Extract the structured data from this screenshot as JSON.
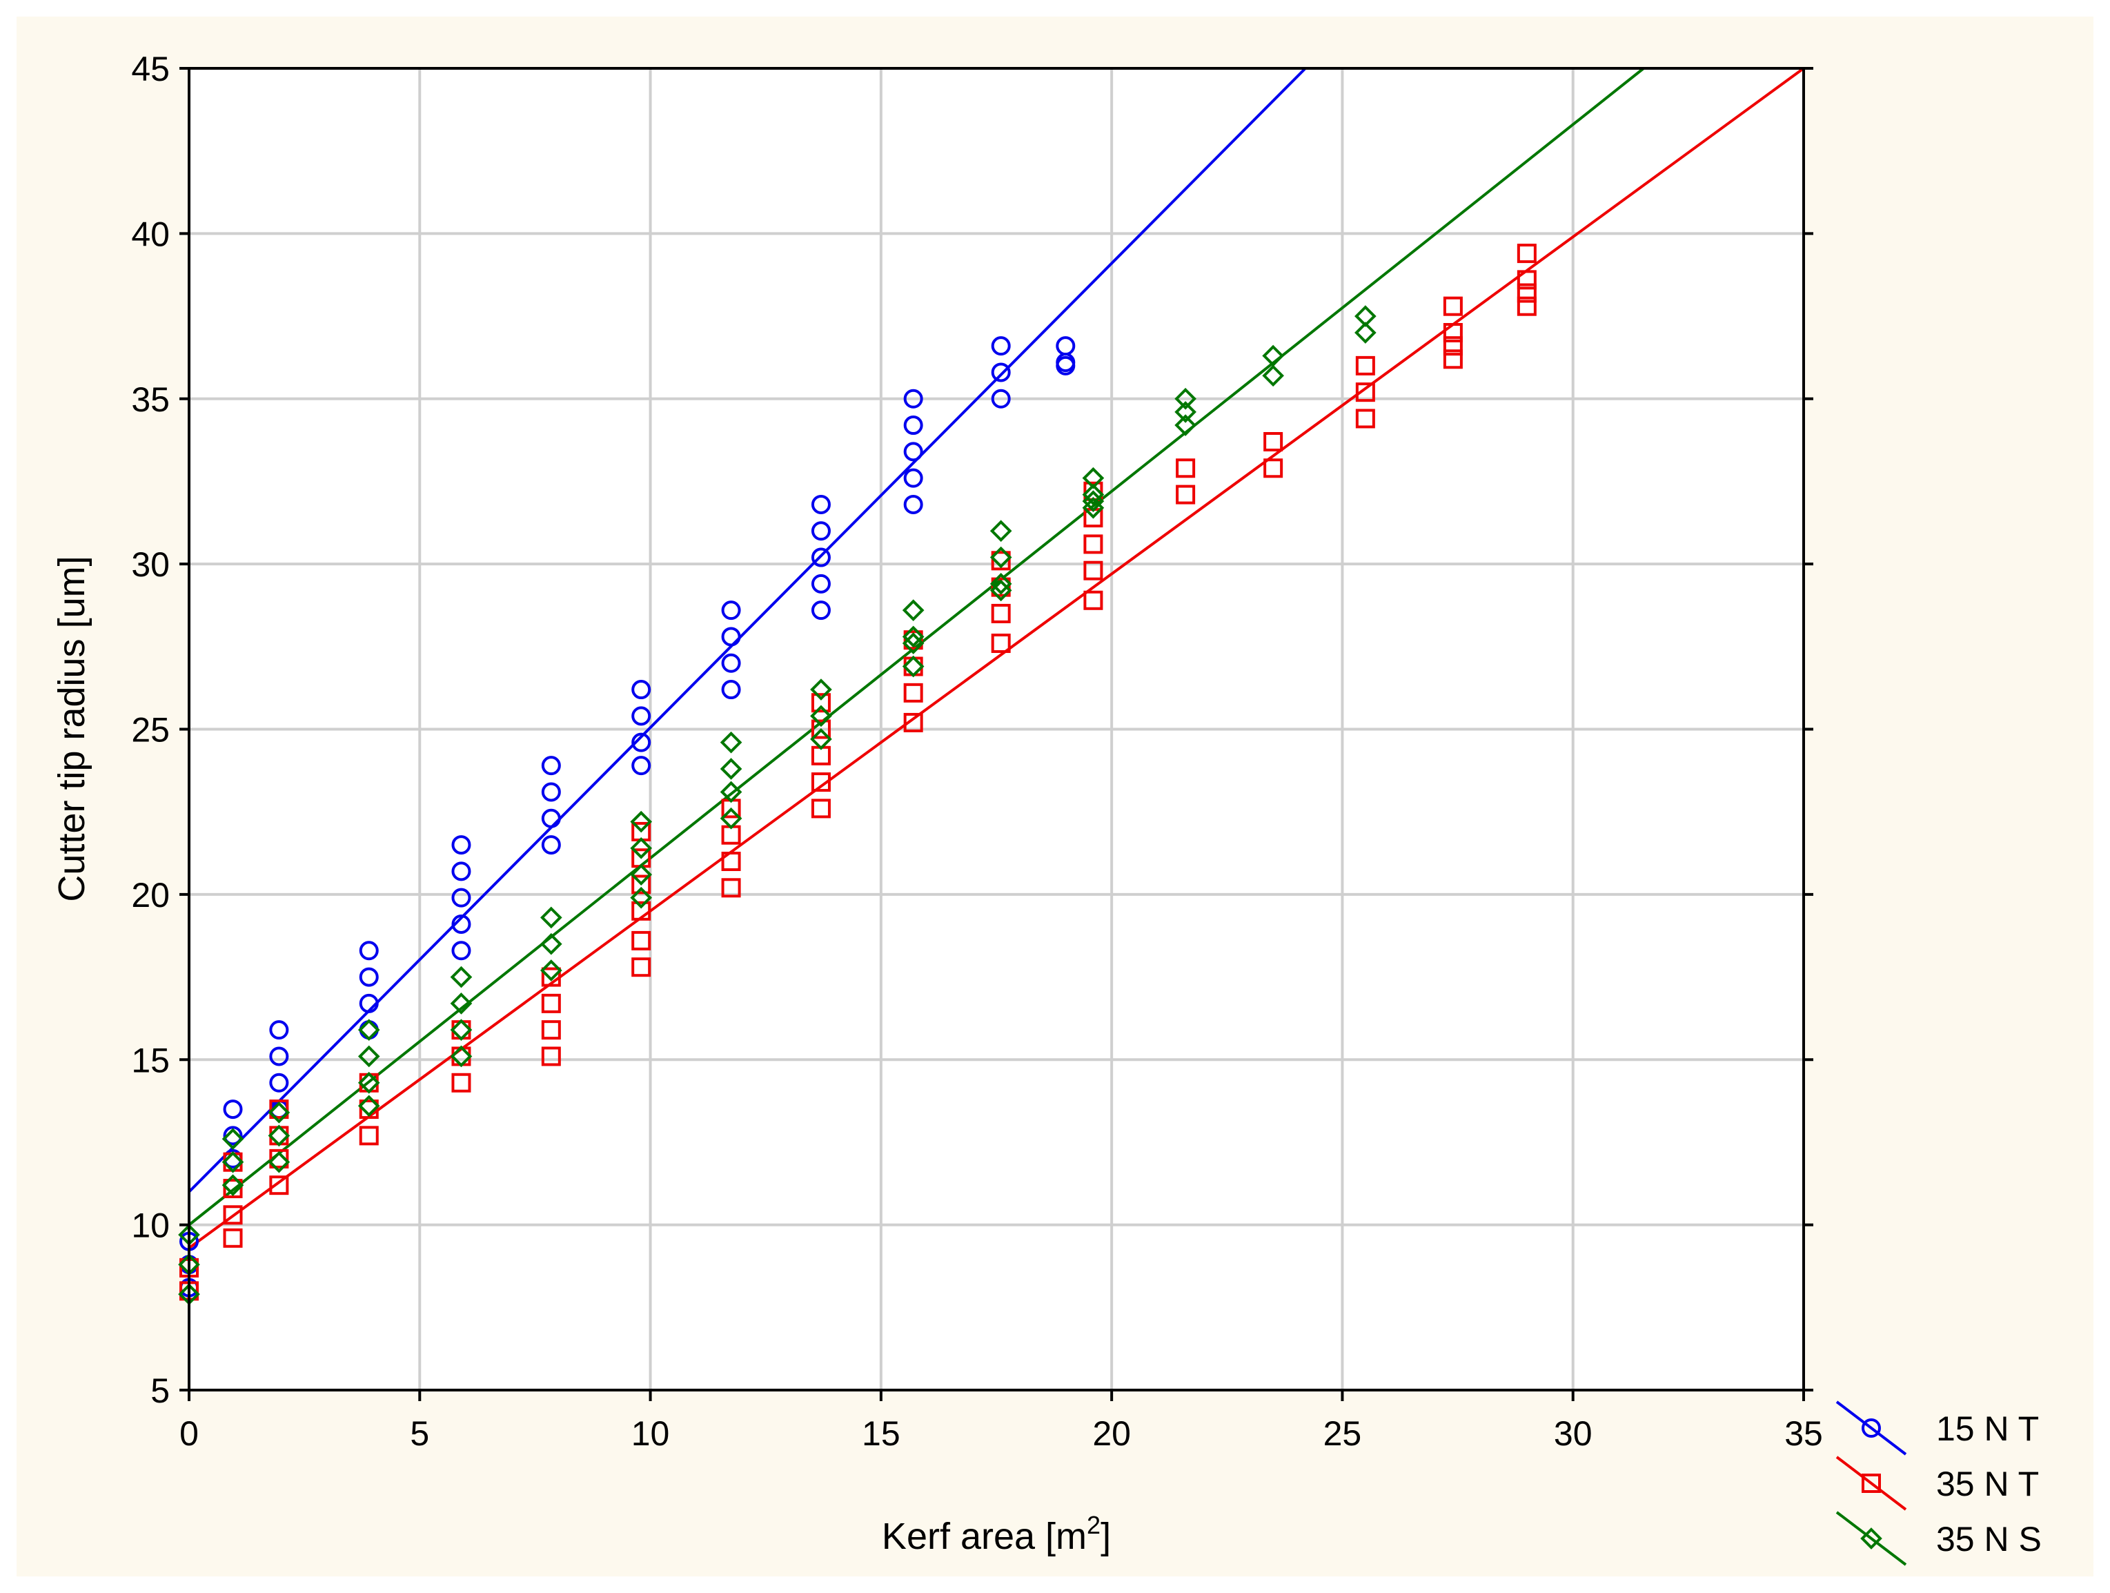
{
  "chart_data": {
    "type": "scatter",
    "title": "",
    "xlabel": "Kerf area [m",
    "xlabel_superscript": "2",
    "xlabel_suffix": "]",
    "ylabel": "Cutter tip radius [um]",
    "xlim": [
      0,
      35
    ],
    "ylim": [
      5,
      45
    ],
    "xticks": [
      0,
      5,
      10,
      15,
      20,
      25,
      30,
      35
    ],
    "yticks": [
      5,
      10,
      15,
      20,
      25,
      30,
      35,
      40,
      45
    ],
    "grid": true,
    "legend_position": "bottom-right-outside",
    "series": [
      {
        "name": "15 N T",
        "color": "#0000ee",
        "marker": "circle",
        "points": [
          [
            0,
            8.1
          ],
          [
            0,
            8.8
          ],
          [
            0,
            9.5
          ],
          [
            0.95,
            12.0
          ],
          [
            0.95,
            12.7
          ],
          [
            0.95,
            13.5
          ],
          [
            1.95,
            13.5
          ],
          [
            1.95,
            14.3
          ],
          [
            1.95,
            15.1
          ],
          [
            1.95,
            15.9
          ],
          [
            3.9,
            15.9
          ],
          [
            3.9,
            16.7
          ],
          [
            3.9,
            17.5
          ],
          [
            3.9,
            18.3
          ],
          [
            5.9,
            18.3
          ],
          [
            5.9,
            19.1
          ],
          [
            5.9,
            19.9
          ],
          [
            5.9,
            20.7
          ],
          [
            5.9,
            21.5
          ],
          [
            7.85,
            21.5
          ],
          [
            7.85,
            22.3
          ],
          [
            7.85,
            23.1
          ],
          [
            7.85,
            23.9
          ],
          [
            9.8,
            23.9
          ],
          [
            9.8,
            24.6
          ],
          [
            9.8,
            25.4
          ],
          [
            9.8,
            26.2
          ],
          [
            11.75,
            26.2
          ],
          [
            11.75,
            27.0
          ],
          [
            11.75,
            27.8
          ],
          [
            11.75,
            28.6
          ],
          [
            13.7,
            28.6
          ],
          [
            13.7,
            29.4
          ],
          [
            13.7,
            30.2
          ],
          [
            13.7,
            31.0
          ],
          [
            13.7,
            31.8
          ],
          [
            15.7,
            31.8
          ],
          [
            15.7,
            32.6
          ],
          [
            15.7,
            33.4
          ],
          [
            15.7,
            34.2
          ],
          [
            15.7,
            35.0
          ],
          [
            17.6,
            35.0
          ],
          [
            17.6,
            35.8
          ],
          [
            17.6,
            36.6
          ],
          [
            19.0,
            36.0
          ],
          [
            19.0,
            36.1
          ],
          [
            19.0,
            36.6
          ]
        ],
        "fit": {
          "intercept": 11.0,
          "slope": 1.405
        }
      },
      {
        "name": "35 N T",
        "color": "#ee0000",
        "marker": "square",
        "points": [
          [
            0,
            8.0
          ],
          [
            0,
            8.7
          ],
          [
            0.95,
            9.6
          ],
          [
            0.95,
            10.3
          ],
          [
            0.95,
            11.1
          ],
          [
            0.95,
            11.9
          ],
          [
            1.95,
            11.2
          ],
          [
            1.95,
            12.0
          ],
          [
            1.95,
            12.7
          ],
          [
            1.95,
            13.5
          ],
          [
            3.9,
            12.7
          ],
          [
            3.9,
            13.5
          ],
          [
            3.9,
            14.3
          ],
          [
            5.9,
            14.3
          ],
          [
            5.9,
            15.1
          ],
          [
            5.9,
            15.9
          ],
          [
            7.85,
            15.1
          ],
          [
            7.85,
            15.9
          ],
          [
            7.85,
            16.7
          ],
          [
            7.85,
            17.5
          ],
          [
            9.8,
            17.8
          ],
          [
            9.8,
            18.6
          ],
          [
            9.8,
            19.5
          ],
          [
            9.8,
            20.3
          ],
          [
            9.8,
            21.1
          ],
          [
            9.8,
            21.9
          ],
          [
            11.75,
            20.2
          ],
          [
            11.75,
            21.0
          ],
          [
            11.75,
            21.8
          ],
          [
            11.75,
            22.6
          ],
          [
            13.7,
            22.6
          ],
          [
            13.7,
            23.4
          ],
          [
            13.7,
            24.2
          ],
          [
            13.7,
            25.0
          ],
          [
            13.7,
            25.8
          ],
          [
            15.7,
            25.2
          ],
          [
            15.7,
            26.1
          ],
          [
            15.7,
            26.9
          ],
          [
            15.7,
            27.7
          ],
          [
            17.6,
            27.6
          ],
          [
            17.6,
            28.5
          ],
          [
            17.6,
            29.3
          ],
          [
            17.6,
            30.1
          ],
          [
            19.6,
            28.9
          ],
          [
            19.6,
            29.8
          ],
          [
            19.6,
            30.6
          ],
          [
            19.6,
            31.4
          ],
          [
            19.6,
            32.2
          ],
          [
            21.6,
            32.1
          ],
          [
            21.6,
            32.9
          ],
          [
            23.5,
            32.9
          ],
          [
            23.5,
            33.7
          ],
          [
            25.5,
            34.4
          ],
          [
            25.5,
            35.2
          ],
          [
            25.5,
            36.0
          ],
          [
            27.4,
            36.2
          ],
          [
            27.4,
            36.6
          ],
          [
            27.4,
            37.0
          ],
          [
            27.4,
            37.8
          ],
          [
            29.0,
            37.8
          ],
          [
            29.0,
            38.2
          ],
          [
            29.0,
            38.6
          ],
          [
            29.0,
            39.4
          ]
        ],
        "fit": {
          "intercept": 9.3,
          "slope": 1.02
        }
      },
      {
        "name": "35 N S",
        "color": "#007700",
        "marker": "diamond",
        "points": [
          [
            0,
            7.9
          ],
          [
            0,
            8.8
          ],
          [
            0,
            9.7
          ],
          [
            0.95,
            11.2
          ],
          [
            0.95,
            11.9
          ],
          [
            0.95,
            12.6
          ],
          [
            1.95,
            11.9
          ],
          [
            1.95,
            12.7
          ],
          [
            1.95,
            13.4
          ],
          [
            3.9,
            13.6
          ],
          [
            3.9,
            14.3
          ],
          [
            3.9,
            15.1
          ],
          [
            3.9,
            15.9
          ],
          [
            5.9,
            15.1
          ],
          [
            5.9,
            15.9
          ],
          [
            5.9,
            16.7
          ],
          [
            5.9,
            17.5
          ],
          [
            7.85,
            17.7
          ],
          [
            7.85,
            18.5
          ],
          [
            7.85,
            19.3
          ],
          [
            9.8,
            19.9
          ],
          [
            9.8,
            20.6
          ],
          [
            9.8,
            21.4
          ],
          [
            9.8,
            22.2
          ],
          [
            11.75,
            22.3
          ],
          [
            11.75,
            23.1
          ],
          [
            11.75,
            23.8
          ],
          [
            11.75,
            24.6
          ],
          [
            13.7,
            24.7
          ],
          [
            13.7,
            25.4
          ],
          [
            13.7,
            26.2
          ],
          [
            15.7,
            26.9
          ],
          [
            15.7,
            27.6
          ],
          [
            15.7,
            27.8
          ],
          [
            15.7,
            28.6
          ],
          [
            17.6,
            29.2
          ],
          [
            17.6,
            29.4
          ],
          [
            17.6,
            30.2
          ],
          [
            17.6,
            31.0
          ],
          [
            19.6,
            31.7
          ],
          [
            19.6,
            31.9
          ],
          [
            19.6,
            32.1
          ],
          [
            19.6,
            32.6
          ],
          [
            21.6,
            34.2
          ],
          [
            21.6,
            34.6
          ],
          [
            21.6,
            35.0
          ],
          [
            23.5,
            35.7
          ],
          [
            23.5,
            36.3
          ],
          [
            25.5,
            37.0
          ],
          [
            25.5,
            37.5
          ]
        ],
        "fit": {
          "intercept": 10.0,
          "slope": 1.11
        }
      }
    ]
  }
}
